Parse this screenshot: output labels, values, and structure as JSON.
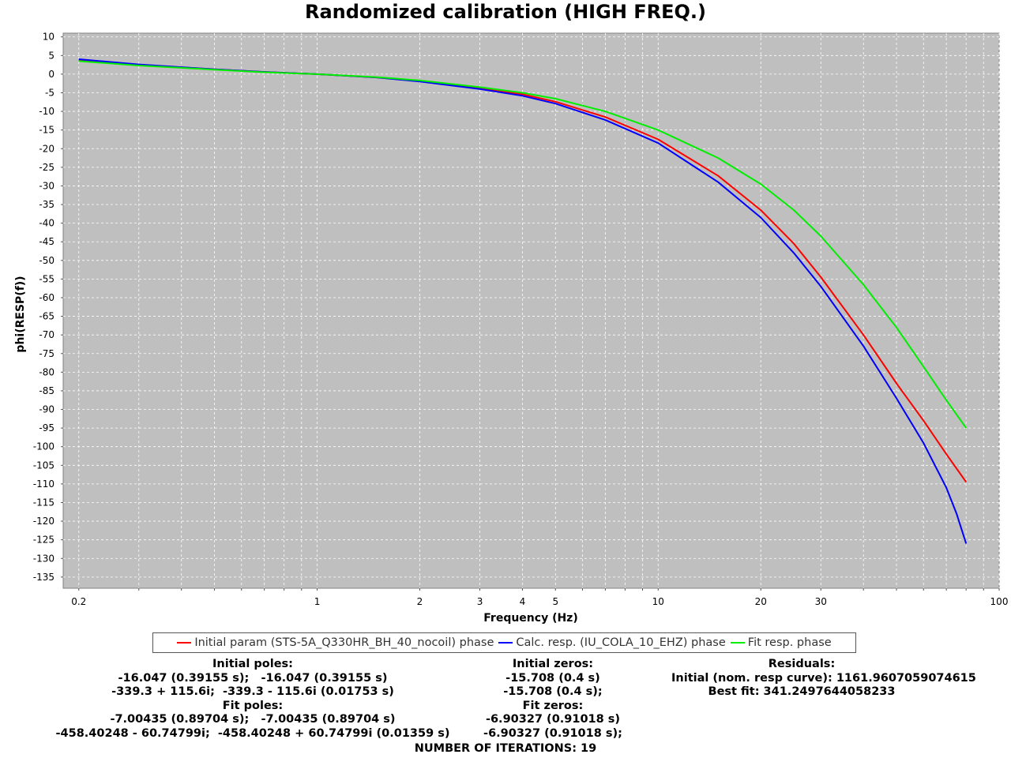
{
  "chart_data": {
    "type": "line",
    "title": "Randomized calibration (HIGH FREQ.)",
    "xlabel": "Frequency (Hz)",
    "ylabel": "phi(RESP(f))",
    "x_scale": "log",
    "xlim": [
      0.18,
      100
    ],
    "ylim": [
      -138,
      11
    ],
    "grid": true,
    "legend_position": "bottom",
    "x_ticks": [
      0.2,
      1,
      2,
      3,
      4,
      5,
      10,
      20,
      30,
      100
    ],
    "y_ticks": [
      10,
      5,
      0,
      -5,
      -10,
      -15,
      -20,
      -25,
      -30,
      -35,
      -40,
      -45,
      -50,
      -55,
      -60,
      -65,
      -70,
      -75,
      -80,
      -85,
      -90,
      -95,
      -100,
      -105,
      -110,
      -115,
      -120,
      -125,
      -130,
      -135
    ],
    "series": [
      {
        "name": "Initial param (STS-5A_Q330HR_BH_40_nocoil) phase",
        "color": "#ff0000",
        "x": [
          0.2,
          0.3,
          0.5,
          0.7,
          1,
          1.5,
          2,
          3,
          4,
          5,
          7,
          10,
          15,
          20,
          25,
          30,
          40,
          50,
          60,
          70,
          80
        ],
        "y": [
          3.8,
          2.5,
          1.3,
          0.6,
          0,
          -0.9,
          -1.9,
          -3.9,
          -5.4,
          -7.4,
          -11.5,
          -17.5,
          -27.3,
          -36.5,
          -45.5,
          -54.5,
          -70,
          -83,
          -93,
          -102,
          -109.5
        ]
      },
      {
        "name": "Calc. resp. (IU_COLA_10_EHZ) phase",
        "color": "#0000ff",
        "x": [
          0.2,
          0.3,
          0.5,
          0.7,
          1,
          1.5,
          2,
          3,
          4,
          5,
          7,
          10,
          15,
          20,
          25,
          30,
          40,
          50,
          60,
          70,
          75,
          80
        ],
        "y": [
          4,
          2.6,
          1.3,
          0.6,
          0,
          -0.9,
          -2,
          -4,
          -5.8,
          -7.9,
          -12.3,
          -18.5,
          -29,
          -38.5,
          -48,
          -57,
          -73,
          -87,
          -99,
          -111,
          -118,
          -126
        ]
      },
      {
        "name": "Fit resp. phase",
        "color": "#00ee00",
        "x": [
          0.2,
          0.3,
          0.5,
          0.7,
          1,
          1.5,
          2,
          3,
          4,
          5,
          7,
          10,
          15,
          20,
          25,
          30,
          40,
          50,
          60,
          70,
          80
        ],
        "y": [
          3.5,
          2.3,
          1.2,
          0.5,
          0,
          -0.8,
          -1.7,
          -3.5,
          -5,
          -6.6,
          -10,
          -15,
          -22.5,
          -29.5,
          -36.5,
          -43.5,
          -56.5,
          -68,
          -78.5,
          -87.5,
          -95
        ]
      }
    ]
  },
  "info": {
    "poles_lines": [
      "Initial poles:",
      "-16.047 (0.39155 s);   -16.047 (0.39155 s)",
      "-339.3 + 115.6i;  -339.3 - 115.6i (0.01753 s)",
      "Fit poles:",
      "-7.00435 (0.89704 s);   -7.00435 (0.89704 s)",
      "-458.40248 - 60.74799i;  -458.40248 + 60.74799i (0.01359 s)"
    ],
    "zeros_lines": [
      "Initial zeros:",
      "-15.708 (0.4 s)",
      "-15.708 (0.4 s);",
      "Fit zeros:",
      "-6.90327 (0.91018 s)",
      "-6.90327 (0.91018 s);"
    ],
    "residuals_lines": [
      "Residuals:",
      "Initial (nom. resp curve): 1161.9607059074615",
      "Best fit: 341.2497644058233"
    ],
    "iterations": "NUMBER OF ITERATIONS: 19"
  }
}
